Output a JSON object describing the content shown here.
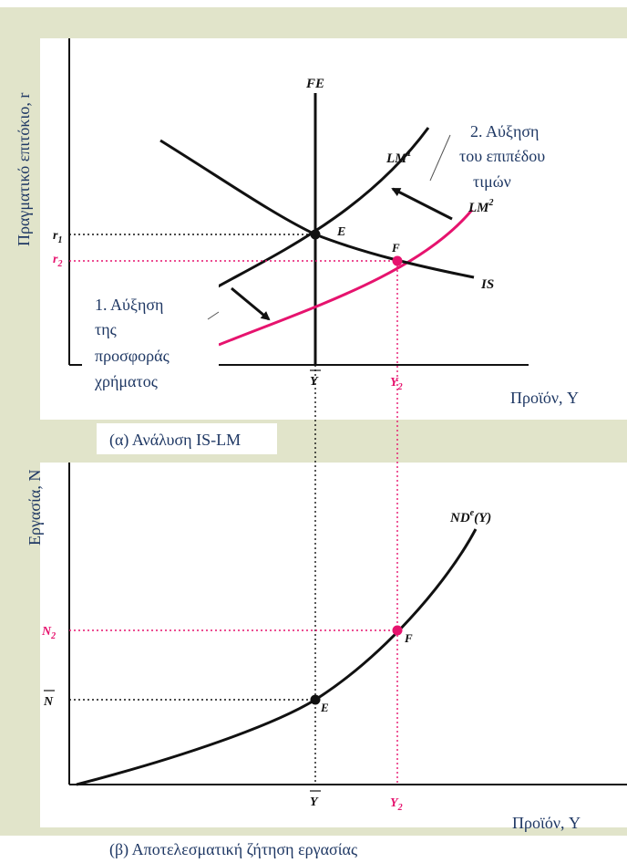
{
  "colors": {
    "panel_bg": "#e1e4ca",
    "plot_bg": "#ffffff",
    "curve": "#111111",
    "highlight": "#e6136e",
    "axis_title": "#1f3864"
  },
  "top_panel": {
    "y_axis_title": "Πραγματικό επιτόκιο, r",
    "x_axis_title": "Προϊόν, Y",
    "caption": "(α) Ανάλυση IS-LM",
    "curves": {
      "fe": "FE",
      "lm1_base": "LM",
      "lm1_sup": "1",
      "lm2_base": "LM",
      "lm2_sup": "2",
      "is": "IS"
    },
    "points": {
      "e": "E",
      "f": "F"
    },
    "ticks": {
      "r1_base": "r",
      "r1_sub": "1",
      "r2_base": "r",
      "r2_sub": "2",
      "ybar": "Y",
      "y2_base": "Y",
      "y2_sub": "2"
    },
    "annotation1": [
      "1. Αύξηση",
      "της",
      "προσφοράς",
      "χρήματος"
    ],
    "annotation2": [
      "2. Αύξηση",
      "του επιπέδου",
      "τιμών"
    ]
  },
  "bottom_panel": {
    "y_axis_title": "Εργασία, N",
    "x_axis_title": "Προϊόν, Y",
    "caption": "(β) Αποτελεσματική ζήτηση εργασίας",
    "curve_nd": {
      "base": "ND",
      "sup": "e",
      "tail": "(Y)"
    },
    "points": {
      "e": "E",
      "f": "F"
    },
    "ticks": {
      "n2_base": "N",
      "n2_sub": "2",
      "nbar": "N",
      "ybar": "Y",
      "y2_base": "Y",
      "y2_sub": "2"
    }
  }
}
